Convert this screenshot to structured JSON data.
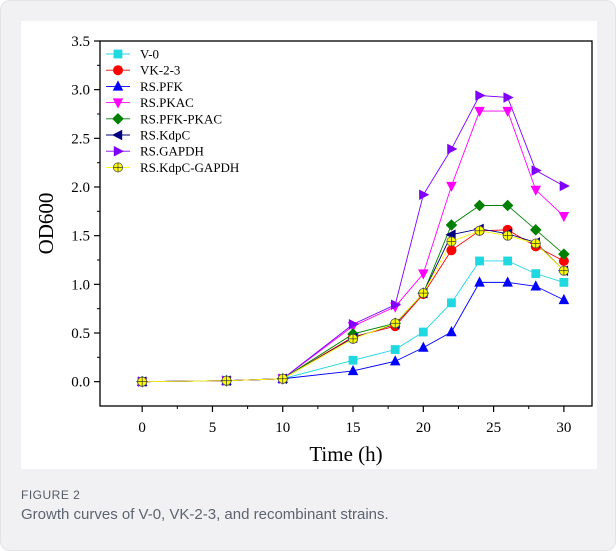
{
  "figure": {
    "label": "FIGURE 2",
    "caption": "Growth curves of V-0, VK-2-3, and recombinant strains."
  },
  "chart_data": {
    "type": "line",
    "xlabel": "Time (h)",
    "ylabel": "OD600",
    "xlim": [
      -3,
      32
    ],
    "ylim": [
      -0.25,
      3.5
    ],
    "xticks": [
      0,
      5,
      10,
      15,
      20,
      25,
      30
    ],
    "yticks": [
      0.0,
      0.5,
      1.0,
      1.5,
      2.0,
      2.5,
      3.0,
      3.5
    ],
    "ytick_labels": [
      "0.0",
      "0.5",
      "1.0",
      "1.5",
      "2.0",
      "2.5",
      "3.0",
      "3.5"
    ],
    "grid": false,
    "legend_position": "top-left",
    "x": [
      0,
      6,
      10,
      15,
      18,
      20,
      22,
      24,
      26,
      28,
      30
    ],
    "series": [
      {
        "name": "V-0",
        "color": "#20d8e0",
        "marker": "square",
        "values": [
          0,
          0.01,
          0.03,
          0.22,
          0.33,
          0.51,
          0.81,
          1.24,
          1.24,
          1.11,
          1.02
        ]
      },
      {
        "name": "VK-2-3",
        "color": "#ff0000",
        "marker": "circle",
        "values": [
          0,
          0.01,
          0.03,
          0.46,
          0.57,
          0.9,
          1.35,
          1.55,
          1.56,
          1.39,
          1.24
        ]
      },
      {
        "name": "RS.PFK",
        "color": "#0000ff",
        "marker": "triangle-up",
        "values": [
          0,
          0.01,
          0.03,
          0.11,
          0.21,
          0.35,
          0.51,
          1.02,
          1.02,
          0.98,
          0.84
        ]
      },
      {
        "name": "RS.PKAC",
        "color": "#ff00ff",
        "marker": "triangle-down",
        "values": [
          0,
          0.01,
          0.03,
          0.57,
          0.77,
          1.11,
          2.01,
          2.78,
          2.78,
          1.97,
          1.7
        ]
      },
      {
        "name": "RS.PFK-PKAC",
        "color": "#008000",
        "marker": "diamond",
        "values": [
          0,
          0.01,
          0.03,
          0.49,
          0.6,
          0.91,
          1.61,
          1.81,
          1.81,
          1.56,
          1.31
        ]
      },
      {
        "name": "RS.KdpC",
        "color": "#000080",
        "marker": "triangle-left",
        "values": [
          0,
          0.01,
          0.03,
          0.45,
          0.59,
          0.91,
          1.51,
          1.57,
          1.52,
          1.43,
          1.14
        ]
      },
      {
        "name": "RS.GAPDH",
        "color": "#8000ff",
        "marker": "triangle-right",
        "values": [
          0,
          0.01,
          0.03,
          0.59,
          0.79,
          1.92,
          2.39,
          2.94,
          2.92,
          2.17,
          2.01
        ]
      },
      {
        "name": "RS.KdpC-GAPDH",
        "color": "#ffff00",
        "marker": "circle-cross",
        "values": [
          0,
          0.01,
          0.03,
          0.44,
          0.6,
          0.91,
          1.44,
          1.55,
          1.5,
          1.42,
          1.14
        ]
      }
    ]
  }
}
